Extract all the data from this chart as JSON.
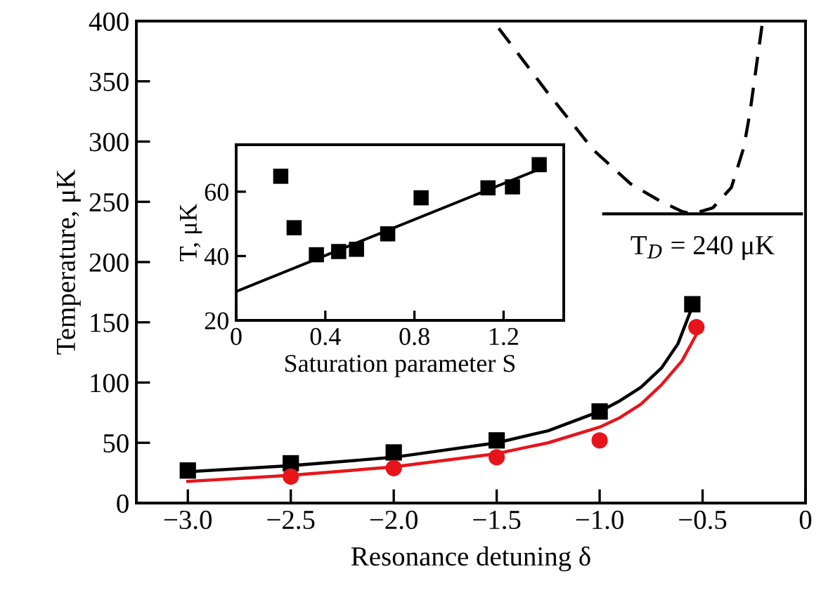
{
  "chart_data": [
    {
      "type": "scatter",
      "xlabel": "Resonance detuning δ",
      "ylabel": "Temperature, μK",
      "xlim": [
        -3.25,
        0
      ],
      "ylim": [
        0,
        400
      ],
      "xticks": [
        {
          "value": -3.0,
          "label": "−3.0"
        },
        {
          "value": -2.5,
          "label": "−2.5"
        },
        {
          "value": -2.0,
          "label": "−2.0"
        },
        {
          "value": -1.5,
          "label": "−1.5"
        },
        {
          "value": -1.0,
          "label": "−1.0"
        },
        {
          "value": -0.5,
          "label": "−0.5"
        },
        0
      ],
      "yticks": [
        0,
        50,
        100,
        150,
        200,
        250,
        300,
        350,
        400
      ],
      "series": [
        {
          "type": "line",
          "color": "#000000",
          "line_style": "dashed",
          "x": [
            -1.49,
            -1.25,
            -1.03,
            -0.85,
            -0.71,
            -0.6,
            -0.55,
            -0.45,
            -0.36,
            -0.3,
            -0.27,
            -0.21
          ],
          "values": [
            394,
            340,
            293,
            265,
            251,
            242,
            240,
            245,
            262,
            295,
            324,
            398
          ]
        },
        {
          "type": "line",
          "color": "#000000",
          "line_style": "solid",
          "x": [
            -0.98,
            -0.02
          ],
          "values": [
            240,
            240
          ]
        },
        {
          "type": "line",
          "color": "#000000",
          "line_style": "solid",
          "x": [
            -3.0,
            -2.5,
            -2.0,
            -1.5,
            -1.25,
            -1.0,
            -0.9,
            -0.8,
            -0.7,
            -0.62,
            -0.55
          ],
          "values": [
            26,
            31,
            38,
            50,
            60,
            76,
            85,
            96,
            112,
            132,
            163
          ]
        },
        {
          "type": "line",
          "color": "#e8141b",
          "line_style": "solid",
          "x": [
            -3.0,
            -2.5,
            -2.0,
            -1.5,
            -1.25,
            -1.0,
            -0.9,
            -0.8,
            -0.7,
            -0.6,
            -0.53
          ],
          "values": [
            18,
            23,
            30,
            41,
            50,
            63,
            71,
            82,
            98,
            118,
            140
          ]
        },
        {
          "type": "scatter",
          "color": "#000000",
          "marker": "square",
          "x": [
            -3.0,
            -2.5,
            -2.0,
            -1.5,
            -1.0,
            -0.55
          ],
          "values": [
            27,
            33,
            42,
            52,
            76,
            165
          ]
        },
        {
          "type": "scatter",
          "color": "#e8141b",
          "marker": "circle",
          "x": [
            -2.5,
            -2.0,
            -1.5,
            -1.0,
            -0.53
          ],
          "values": [
            22,
            29,
            38,
            52,
            146
          ]
        }
      ],
      "annotations": [
        {
          "text": "T$_{D}$ = 240 μK",
          "x": -0.5,
          "y": 240
        }
      ]
    },
    {
      "type": "scatter",
      "xlabel": "Saturation parameter S",
      "ylabel": "T, μK",
      "xlim": [
        0,
        1.47
      ],
      "ylim": [
        20,
        74.6
      ],
      "xticks": [
        0,
        0.4,
        0.8,
        1.2
      ],
      "yticks": [
        20,
        40,
        60
      ],
      "series": [
        {
          "type": "line",
          "color": "#000000",
          "line_style": "solid",
          "x": [
            0,
            1.36
          ],
          "values": [
            29,
            67
          ]
        },
        {
          "type": "scatter",
          "color": "#000000",
          "marker": "square",
          "x": [
            0.2,
            0.26,
            0.36,
            0.46,
            0.54,
            0.68,
            0.83,
            1.13,
            1.24,
            1.36
          ],
          "values": [
            64.8,
            48.8,
            40.4,
            41.4,
            42.1,
            46.9,
            58.1,
            61.2,
            61.5,
            68.4
          ]
        }
      ]
    }
  ]
}
